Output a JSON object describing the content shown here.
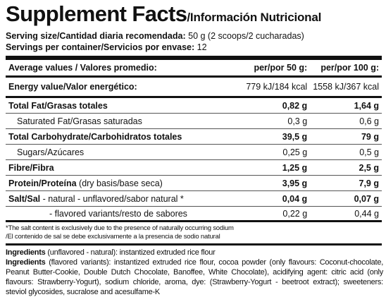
{
  "header": {
    "title": "Supplement Facts",
    "subtitle": "/Información Nutricional"
  },
  "serving": [
    {
      "label": "Serving size/Cantidad diaria recomendada:",
      "value": "50 g (2 scoops/2 cucharadas)"
    },
    {
      "label": "Servings per container/Servicios por envase:",
      "value": "12"
    }
  ],
  "table": {
    "columns": [
      "Average values / Valores promedio:",
      "per/por 50 g:",
      "per/por 100 g:"
    ],
    "energy": {
      "name": "Energy value/Valor energético:",
      "v50": "779 kJ/184 kcal",
      "v100": "1558 kJ/367 kcal"
    },
    "rows": [
      {
        "name": "Total Fat/Grasas totales",
        "v50": "0,82 g",
        "v100": "1,64 g"
      },
      {
        "name": "Saturated Fat/Grasas saturadas",
        "v50": "0,3 g",
        "v100": "0,6 g"
      },
      {
        "name": "Total Carbohydrate/Carbohidratos totales",
        "v50": "39,5 g",
        "v100": "79 g"
      },
      {
        "name": "Sugars/Azúcares",
        "v50": "0,25 g",
        "v100": "0,5 g"
      },
      {
        "name": "Fibre/Fibra",
        "v50": "1,25 g",
        "v100": "2,5 g"
      },
      {
        "name": "Protein/Proteína",
        "note": "(dry basis/base seca)",
        "v50": "3,95 g",
        "v100": "7,9 g"
      },
      {
        "name": "Salt/Sal",
        "note": "- natural - unflavored/sabor natural *",
        "v50": "0,04 g",
        "v100": "0,07 g"
      },
      {
        "name": "- flavored variants/resto de sabores",
        "v50": "0,22 g",
        "v100": "0,44 g"
      }
    ]
  },
  "footnotes": [
    "*The salt content is exclusively due to the presence of naturally occurring sodium",
    "/El contenido de sal se debe exclusivamente a la presencia de sodio natural"
  ],
  "ingredients": [
    {
      "label": "Ingredients",
      "text": "(unflavored - natural): instantized extruded rice flour"
    },
    {
      "label": "Ingredients",
      "text": "(flavored variants): instantized extruded rice flour, cocoa powder (only flavours: Coconut-chocolate, Peanut Butter-Cookie, Double Dutch Chocolate, Banoffee, White Chocolate), acidifying agent: citric acid (only flavours: Strawberry-Yogurt), sodium chloride, aroma, dye: (Strawberry-Yogurt - beetroot extract); sweeteners: steviol glycosides, sucralose and acesulfame-K"
    }
  ]
}
